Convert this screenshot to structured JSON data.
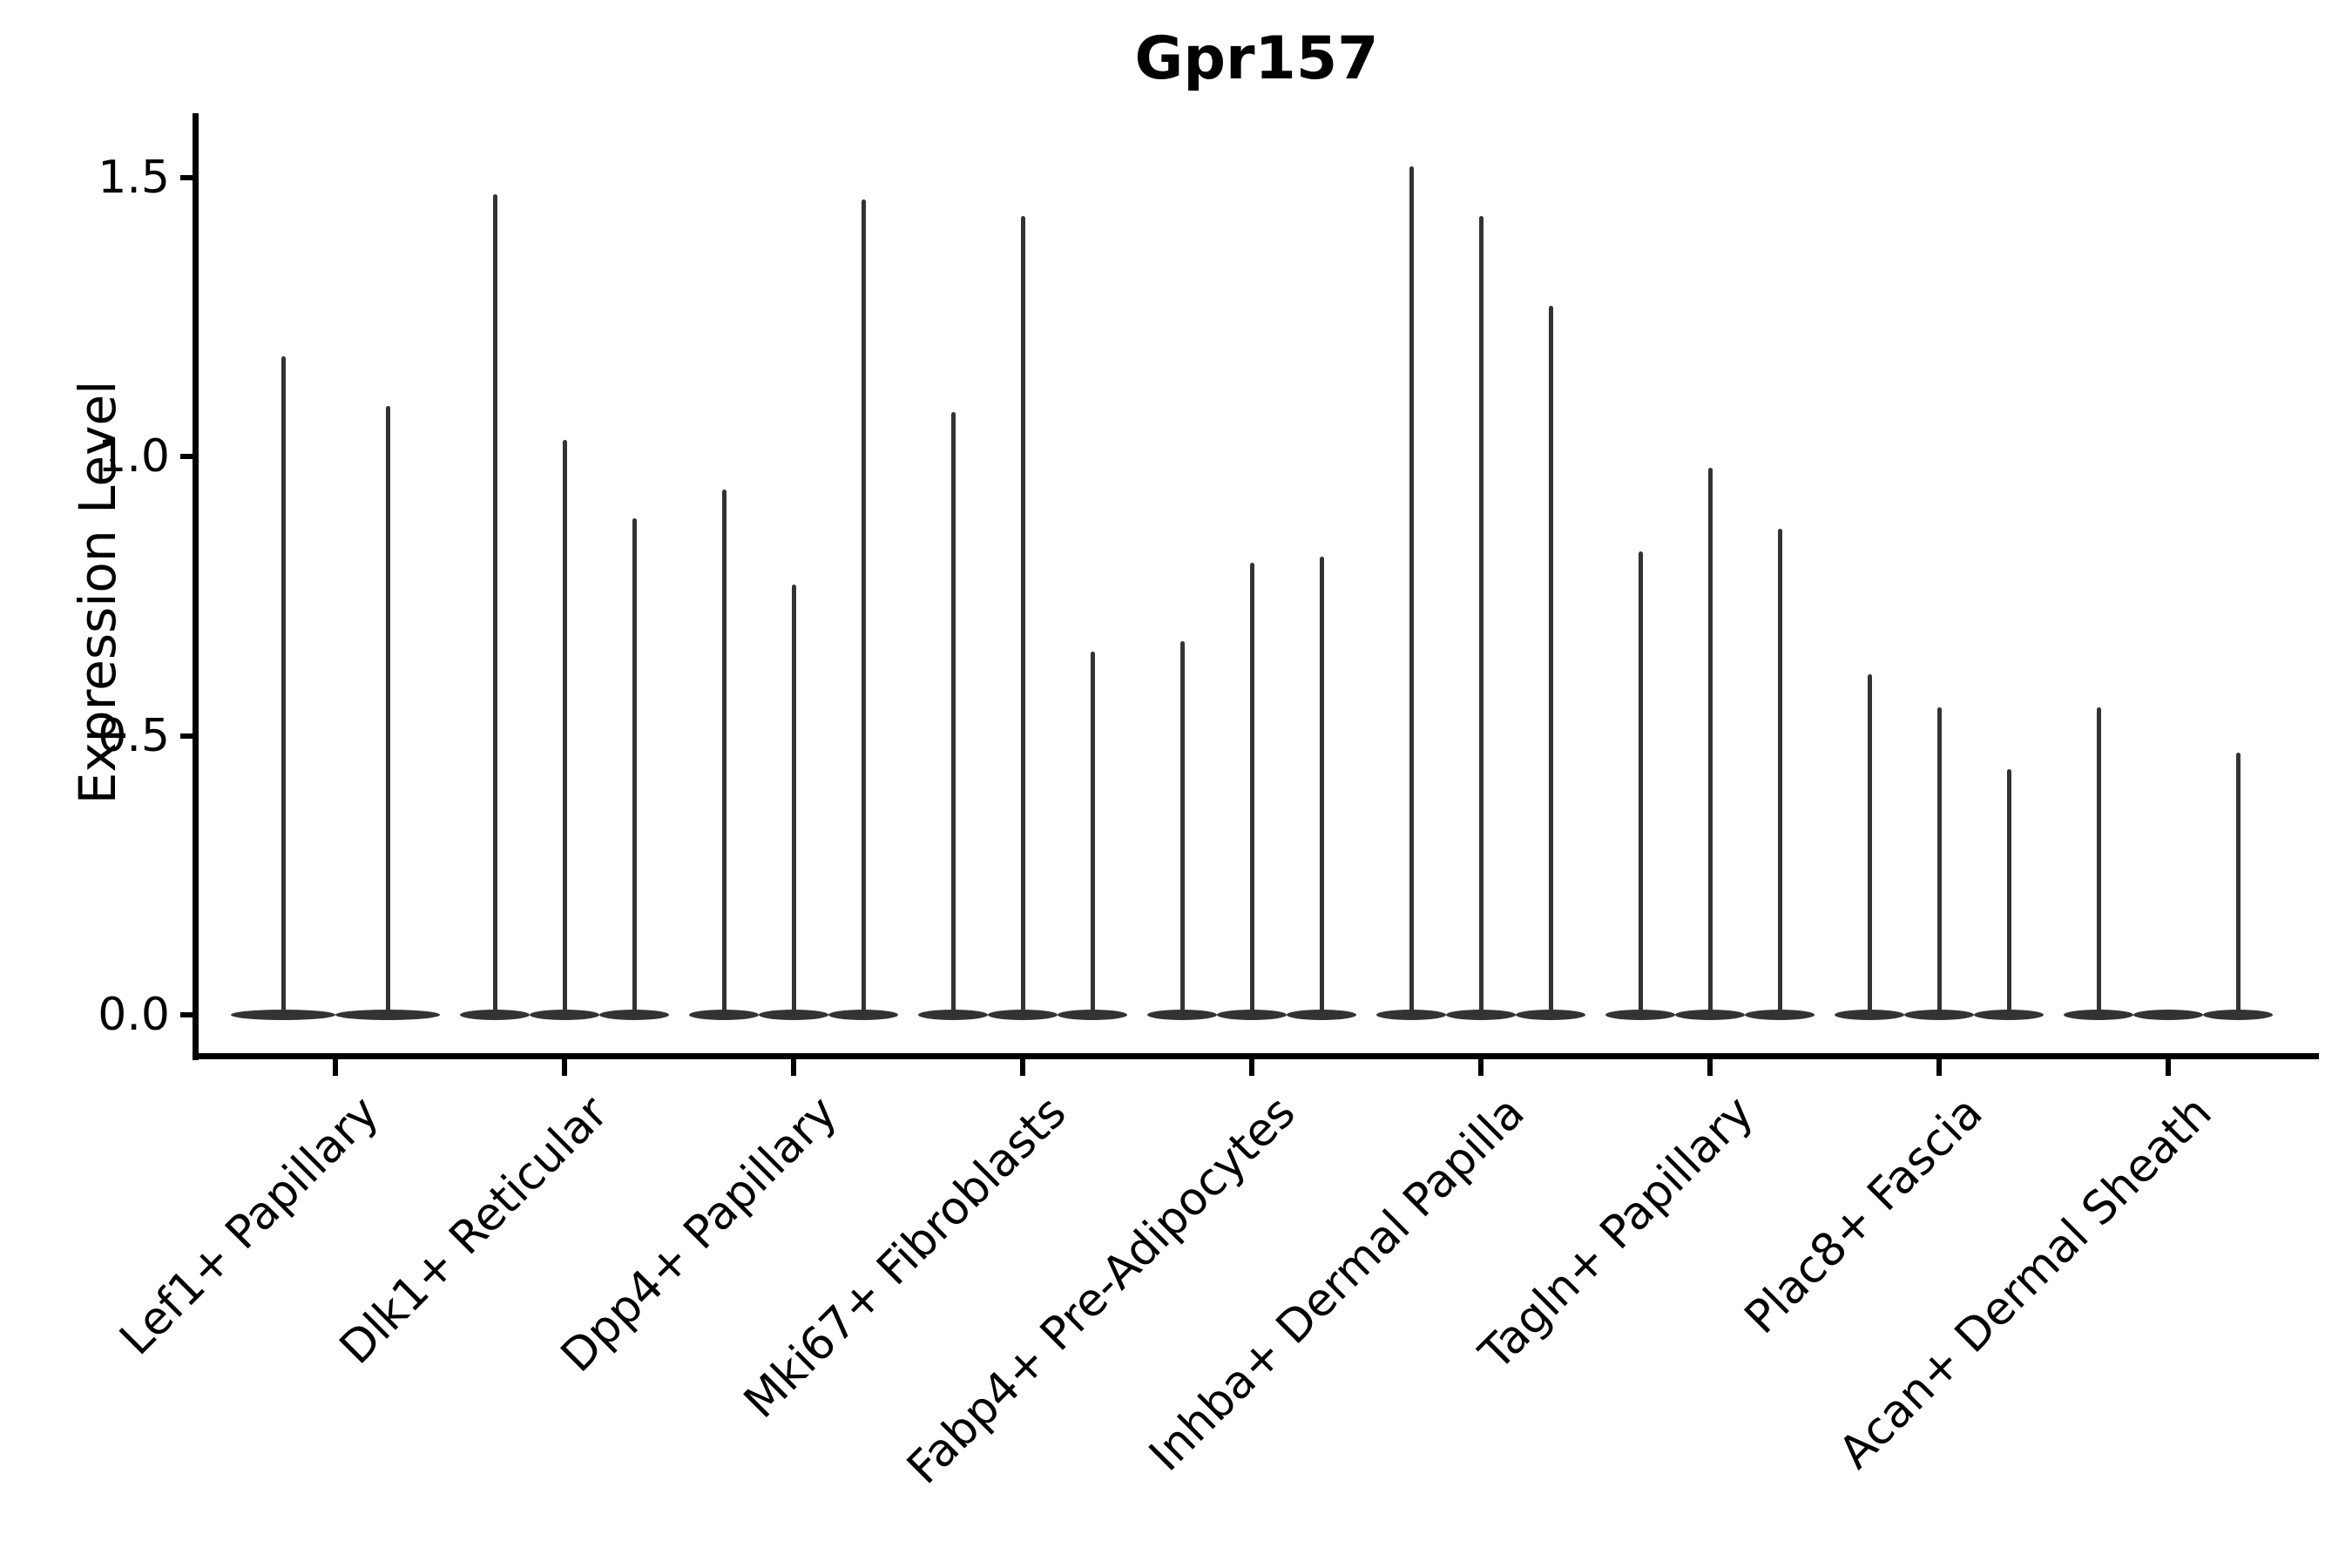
{
  "title": "Gpr157",
  "ylabel": "Expression Level",
  "chart_data": {
    "type": "violin",
    "title": "Gpr157",
    "xlabel": "",
    "ylabel": "Expression Level",
    "ylim": [
      0,
      1.62
    ],
    "yticks": [
      0.0,
      0.5,
      1.0,
      1.5
    ],
    "ytick_labels": [
      "0.0",
      "0.5",
      "1.0",
      "1.5"
    ],
    "grid": false,
    "legend": null,
    "description": "Stacked-violin style expression plot; each category contains 2-3 violins that are flat at 0 with a thin spike rising to the listed maximum expression value",
    "categories": [
      "Lef1+ Papillary",
      "Dlk1+ Reticular",
      "Dpp4+ Papillary",
      "Mki67+ Fibroblasts",
      "Fabp4+ Pre-Adipocytes",
      "Inhba+ Dermal Papilla",
      "Tagln+ Papillary",
      "Plac8+ Fascia",
      "Acan+ Dermal Sheath"
    ],
    "groups": [
      {
        "category": "Lef1+ Papillary",
        "violin_max": [
          1.18,
          1.09
        ]
      },
      {
        "category": "Dlk1+ Reticular",
        "violin_max": [
          1.47,
          1.03,
          0.89
        ]
      },
      {
        "category": "Dpp4+ Papillary",
        "violin_max": [
          0.94,
          0.77,
          1.46
        ]
      },
      {
        "category": "Mki67+ Fibroblasts",
        "violin_max": [
          1.08,
          1.43,
          0.65
        ]
      },
      {
        "category": "Fabp4+ Pre-Adipocytes",
        "violin_max": [
          0.67,
          0.81,
          0.82
        ]
      },
      {
        "category": "Inhba+ Dermal Papilla",
        "violin_max": [
          1.52,
          1.43,
          1.27
        ]
      },
      {
        "category": "Tagln+ Papillary",
        "violin_max": [
          0.83,
          0.98,
          0.87
        ]
      },
      {
        "category": "Plac8+ Fascia",
        "violin_max": [
          0.61,
          0.55,
          0.44
        ]
      },
      {
        "category": "Acan+ Dermal Sheath",
        "violin_max": [
          0.55,
          0.0,
          0.47
        ]
      }
    ],
    "colors": {
      "violin": "#333333",
      "axis": "#000000",
      "text": "#000000",
      "background": "#ffffff"
    }
  }
}
